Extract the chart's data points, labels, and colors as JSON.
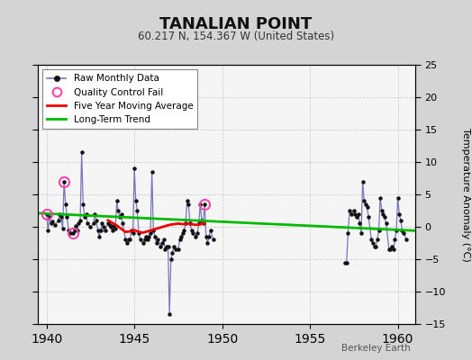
{
  "title": "TANALIAN POINT",
  "subtitle": "60.217 N, 154.367 W (United States)",
  "ylabel": "Temperature Anomaly (°C)",
  "credit": "Berkeley Earth",
  "xlim": [
    1939.5,
    1961.0
  ],
  "ylim": [
    -15,
    25
  ],
  "yticks": [
    -15,
    -10,
    -5,
    0,
    5,
    10,
    15,
    20,
    25
  ],
  "xticks": [
    1940,
    1945,
    1950,
    1955,
    1960
  ],
  "fig_bg_color": "#d4d4d4",
  "plot_bg_color": "#f5f5f5",
  "raw_line_color": "#7777bb",
  "raw_marker_color": "#111111",
  "qc_color": "#ff44aa",
  "moving_avg_color": "#ee0000",
  "trend_color": "#00bb00",
  "raw_segments": [
    [
      [
        1940.0,
        2.0
      ],
      [
        1940.083,
        -0.5
      ],
      [
        1940.167,
        1.5
      ],
      [
        1940.25,
        0.5
      ],
      [
        1940.333,
        0.8
      ],
      [
        1940.5,
        0.3
      ],
      [
        1940.667,
        1.0
      ],
      [
        1940.75,
        2.0
      ],
      [
        1940.833,
        1.5
      ],
      [
        1940.917,
        -0.3
      ],
      [
        1941.0,
        7.0
      ],
      [
        1941.083,
        3.5
      ],
      [
        1941.167,
        1.5
      ],
      [
        1941.25,
        -0.5
      ],
      [
        1941.333,
        -1.0
      ],
      [
        1941.5,
        -1.0
      ],
      [
        1941.583,
        -0.5
      ],
      [
        1941.667,
        0.2
      ],
      [
        1941.75,
        -0.5
      ],
      [
        1941.833,
        0.5
      ],
      [
        1941.917,
        1.0
      ],
      [
        1942.0,
        11.5
      ],
      [
        1942.083,
        3.5
      ],
      [
        1942.167,
        1.5
      ],
      [
        1942.25,
        2.0
      ],
      [
        1942.333,
        0.5
      ],
      [
        1942.5,
        0.0
      ],
      [
        1942.667,
        0.5
      ],
      [
        1942.75,
        2.0
      ],
      [
        1942.833,
        1.0
      ],
      [
        1942.917,
        -0.5
      ],
      [
        1943.0,
        -1.5
      ],
      [
        1943.083,
        -0.5
      ],
      [
        1943.167,
        0.5
      ],
      [
        1943.25,
        0.0
      ],
      [
        1943.333,
        -0.5
      ],
      [
        1943.5,
        0.5
      ],
      [
        1943.583,
        0.3
      ],
      [
        1943.667,
        0.0
      ],
      [
        1943.75,
        -0.5
      ],
      [
        1943.833,
        0.2
      ],
      [
        1943.917,
        -0.3
      ],
      [
        1944.0,
        4.0
      ],
      [
        1944.083,
        2.5
      ],
      [
        1944.167,
        1.5
      ],
      [
        1944.25,
        2.0
      ],
      [
        1944.333,
        0.5
      ],
      [
        1944.5,
        -2.0
      ],
      [
        1944.583,
        -2.5
      ],
      [
        1944.667,
        -2.0
      ],
      [
        1944.75,
        -2.0
      ],
      [
        1944.833,
        -0.5
      ],
      [
        1944.917,
        -1.0
      ],
      [
        1945.0,
        9.0
      ],
      [
        1945.083,
        4.0
      ],
      [
        1945.167,
        2.5
      ],
      [
        1945.25,
        -1.0
      ],
      [
        1945.333,
        -2.0
      ],
      [
        1945.5,
        -2.5
      ],
      [
        1945.583,
        -2.0
      ],
      [
        1945.667,
        -1.5
      ],
      [
        1945.75,
        -2.0
      ],
      [
        1945.833,
        -1.5
      ],
      [
        1945.917,
        -1.0
      ],
      [
        1946.0,
        8.5
      ],
      [
        1946.083,
        -0.5
      ],
      [
        1946.167,
        -1.5
      ],
      [
        1946.25,
        -2.5
      ],
      [
        1946.333,
        -2.0
      ],
      [
        1946.5,
        -3.0
      ],
      [
        1946.583,
        -2.5
      ],
      [
        1946.667,
        -2.0
      ],
      [
        1946.75,
        -3.5
      ],
      [
        1946.833,
        -3.0
      ],
      [
        1946.917,
        -3.0
      ],
      [
        1947.0,
        -13.5
      ],
      [
        1947.083,
        -5.0
      ],
      [
        1947.167,
        -4.0
      ],
      [
        1947.25,
        -3.0
      ],
      [
        1947.333,
        -3.5
      ],
      [
        1947.5,
        -3.5
      ],
      [
        1947.583,
        -2.0
      ],
      [
        1947.667,
        -1.5
      ],
      [
        1947.75,
        -1.0
      ],
      [
        1947.833,
        -0.5
      ],
      [
        1947.917,
        0.5
      ],
      [
        1948.0,
        4.0
      ],
      [
        1948.083,
        3.5
      ],
      [
        1948.167,
        0.5
      ],
      [
        1948.25,
        -0.5
      ],
      [
        1948.333,
        -1.0
      ],
      [
        1948.5,
        -1.5
      ],
      [
        1948.583,
        -1.0
      ],
      [
        1948.667,
        0.5
      ],
      [
        1948.75,
        3.5
      ],
      [
        1948.833,
        1.0
      ],
      [
        1948.917,
        0.5
      ],
      [
        1949.0,
        3.5
      ],
      [
        1949.083,
        -1.5
      ],
      [
        1949.167,
        -2.5
      ],
      [
        1949.25,
        -1.5
      ],
      [
        1949.333,
        -0.5
      ],
      [
        1949.5,
        -2.0
      ]
    ],
    [
      [
        1957.0,
        -5.5
      ],
      [
        1957.083,
        -5.5
      ],
      [
        1957.167,
        -1.0
      ],
      [
        1957.25,
        2.5
      ],
      [
        1957.333,
        2.0
      ],
      [
        1957.5,
        2.5
      ],
      [
        1957.583,
        2.0
      ],
      [
        1957.667,
        1.5
      ],
      [
        1957.75,
        2.0
      ],
      [
        1957.833,
        0.5
      ],
      [
        1957.917,
        -1.0
      ],
      [
        1958.0,
        7.0
      ],
      [
        1958.083,
        4.0
      ],
      [
        1958.167,
        3.5
      ],
      [
        1958.25,
        3.0
      ],
      [
        1958.333,
        1.5
      ],
      [
        1958.5,
        -2.0
      ],
      [
        1958.583,
        -2.5
      ],
      [
        1958.667,
        -3.0
      ],
      [
        1958.75,
        -3.0
      ],
      [
        1958.833,
        -2.0
      ],
      [
        1958.917,
        -0.5
      ],
      [
        1959.0,
        4.5
      ],
      [
        1959.083,
        2.5
      ],
      [
        1959.167,
        2.0
      ],
      [
        1959.25,
        1.5
      ],
      [
        1959.333,
        0.5
      ],
      [
        1959.5,
        -3.5
      ],
      [
        1959.583,
        -3.5
      ],
      [
        1959.667,
        -3.0
      ],
      [
        1959.75,
        -3.5
      ],
      [
        1959.833,
        -2.0
      ],
      [
        1959.917,
        -0.5
      ],
      [
        1960.0,
        4.5
      ],
      [
        1960.083,
        2.0
      ],
      [
        1960.167,
        1.0
      ],
      [
        1960.25,
        -0.5
      ],
      [
        1960.333,
        -1.0
      ],
      [
        1960.5,
        -2.0
      ]
    ]
  ],
  "qc_fail_points": [
    [
      1940.0,
      2.0
    ],
    [
      1941.0,
      7.0
    ],
    [
      1941.5,
      -1.0
    ],
    [
      1949.0,
      3.5
    ]
  ],
  "moving_avg_data": [
    [
      1943.5,
      1.0
    ],
    [
      1943.75,
      0.6
    ],
    [
      1944.0,
      0.2
    ],
    [
      1944.25,
      -0.3
    ],
    [
      1944.5,
      -0.8
    ],
    [
      1944.75,
      -0.7
    ],
    [
      1945.0,
      -0.5
    ],
    [
      1945.25,
      -0.8
    ],
    [
      1945.5,
      -0.9
    ],
    [
      1945.75,
      -0.7
    ],
    [
      1946.0,
      -0.5
    ],
    [
      1946.25,
      -0.3
    ],
    [
      1946.5,
      -0.1
    ],
    [
      1946.75,
      0.1
    ],
    [
      1947.0,
      0.3
    ],
    [
      1947.25,
      0.4
    ],
    [
      1947.5,
      0.5
    ],
    [
      1947.75,
      0.4
    ],
    [
      1948.0,
      0.5
    ],
    [
      1948.25,
      0.4
    ],
    [
      1948.5,
      0.3
    ],
    [
      1948.75,
      0.4
    ],
    [
      1949.0,
      0.5
    ]
  ],
  "trend_x": [
    1939.5,
    1961.0
  ],
  "trend_y": [
    2.1,
    -0.6
  ]
}
